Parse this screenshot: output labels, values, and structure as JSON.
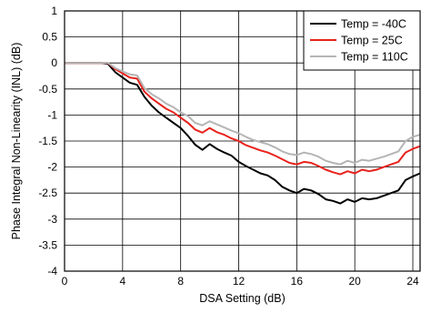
{
  "chart_data": {
    "type": "line",
    "title": "",
    "xlabel": "DSA Setting (dB)",
    "ylabel": "Phase Integral Non-Linearity (INL) (dB)",
    "xlim": [
      0,
      24.5
    ],
    "ylim": [
      -4,
      1
    ],
    "xticks": [
      0,
      4,
      8,
      12,
      16,
      20,
      24
    ],
    "yticks": [
      1,
      0.5,
      0,
      -0.5,
      -1,
      -1.5,
      -2,
      -2.5,
      -3,
      -3.5,
      -4
    ],
    "grid": true,
    "legend_position": "top-right",
    "series": [
      {
        "name": "Temp = -40C",
        "color": "#000000",
        "x": [
          0,
          0.5,
          1,
          1.5,
          2,
          2.5,
          3,
          3.5,
          4,
          4.5,
          5,
          5.5,
          6,
          6.5,
          7,
          7.5,
          8,
          8.5,
          9,
          9.5,
          10,
          10.5,
          11,
          11.5,
          12,
          12.5,
          13,
          13.5,
          14,
          14.5,
          15,
          15.5,
          16,
          16.5,
          17,
          17.5,
          18,
          18.5,
          19,
          19.5,
          20,
          20.5,
          21,
          21.5,
          22,
          22.5,
          23,
          23.5,
          24,
          24.5
        ],
        "y": [
          0,
          0,
          0,
          0,
          0,
          0,
          -0.02,
          -0.18,
          -0.28,
          -0.38,
          -0.42,
          -0.65,
          -0.82,
          -0.95,
          -1.05,
          -1.15,
          -1.25,
          -1.4,
          -1.57,
          -1.67,
          -1.56,
          -1.65,
          -1.72,
          -1.78,
          -1.9,
          -1.98,
          -2.05,
          -2.12,
          -2.16,
          -2.25,
          -2.38,
          -2.45,
          -2.5,
          -2.42,
          -2.45,
          -2.52,
          -2.62,
          -2.65,
          -2.7,
          -2.62,
          -2.67,
          -2.6,
          -2.62,
          -2.6,
          -2.55,
          -2.5,
          -2.45,
          -2.25,
          -2.18,
          -2.12
        ]
      },
      {
        "name": "Temp = 25C",
        "color": "#e8221c",
        "x": [
          0,
          0.5,
          1,
          1.5,
          2,
          2.5,
          3,
          3.5,
          4,
          4.5,
          5,
          5.5,
          6,
          6.5,
          7,
          7.5,
          8,
          8.5,
          9,
          9.5,
          10,
          10.5,
          11,
          11.5,
          12,
          12.5,
          13,
          13.5,
          14,
          14.5,
          15,
          15.5,
          16,
          16.5,
          17,
          17.5,
          18,
          18.5,
          19,
          19.5,
          20,
          20.5,
          21,
          21.5,
          22,
          22.5,
          23,
          23.5,
          24,
          24.5
        ],
        "y": [
          0,
          0,
          0,
          0,
          0,
          0,
          0,
          -0.12,
          -0.2,
          -0.28,
          -0.3,
          -0.55,
          -0.68,
          -0.78,
          -0.88,
          -0.95,
          -1.05,
          -1.15,
          -1.28,
          -1.34,
          -1.25,
          -1.33,
          -1.38,
          -1.45,
          -1.5,
          -1.58,
          -1.63,
          -1.68,
          -1.72,
          -1.78,
          -1.85,
          -1.92,
          -1.95,
          -1.9,
          -1.92,
          -1.98,
          -2.05,
          -2.1,
          -2.14,
          -2.08,
          -2.12,
          -2.05,
          -2.08,
          -2.05,
          -2.0,
          -1.95,
          -1.9,
          -1.72,
          -1.65,
          -1.6
        ]
      },
      {
        "name": "Temp = 110C",
        "color": "#b5b5b5",
        "x": [
          0,
          0.5,
          1,
          1.5,
          2,
          2.5,
          3,
          3.5,
          4,
          4.5,
          5,
          5.5,
          6,
          6.5,
          7,
          7.5,
          8,
          8.5,
          9,
          9.5,
          10,
          10.5,
          11,
          11.5,
          12,
          12.5,
          13,
          13.5,
          14,
          14.5,
          15,
          15.5,
          16,
          16.5,
          17,
          17.5,
          18,
          18.5,
          19,
          19.5,
          20,
          20.5,
          21,
          21.5,
          22,
          22.5,
          23,
          23.5,
          24,
          24.5
        ],
        "y": [
          0,
          0,
          0,
          0,
          0,
          0,
          0,
          -0.1,
          -0.16,
          -0.22,
          -0.24,
          -0.48,
          -0.6,
          -0.68,
          -0.78,
          -0.85,
          -0.95,
          -1.02,
          -1.15,
          -1.2,
          -1.12,
          -1.18,
          -1.24,
          -1.3,
          -1.35,
          -1.42,
          -1.48,
          -1.52,
          -1.56,
          -1.62,
          -1.7,
          -1.75,
          -1.77,
          -1.72,
          -1.75,
          -1.8,
          -1.88,
          -1.92,
          -1.95,
          -1.88,
          -1.92,
          -1.86,
          -1.88,
          -1.84,
          -1.8,
          -1.75,
          -1.7,
          -1.5,
          -1.42,
          -1.38
        ]
      }
    ]
  }
}
